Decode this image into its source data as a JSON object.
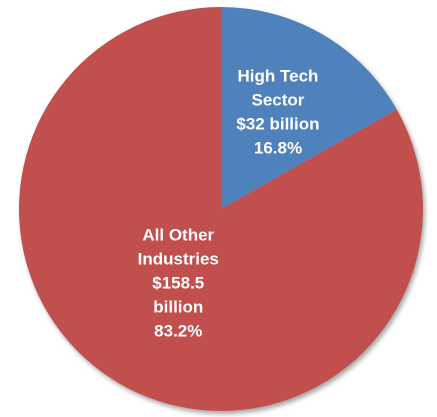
{
  "chart_data": {
    "type": "pie",
    "slices": [
      {
        "name": "High Tech Sector",
        "value": 32,
        "percent": 16.8,
        "label_lines": [
          "High Tech",
          "Sector",
          "$32 billion",
          "16.8%"
        ],
        "color": "#4F81BD"
      },
      {
        "name": "All Other Industries",
        "value": 158.5,
        "percent": 83.2,
        "label_lines": [
          "All Other",
          "Industries",
          "$158.5",
          "billion",
          "83.2%"
        ],
        "color": "#C0504D"
      }
    ],
    "start_angle_deg": 0,
    "direction": "clockwise"
  }
}
